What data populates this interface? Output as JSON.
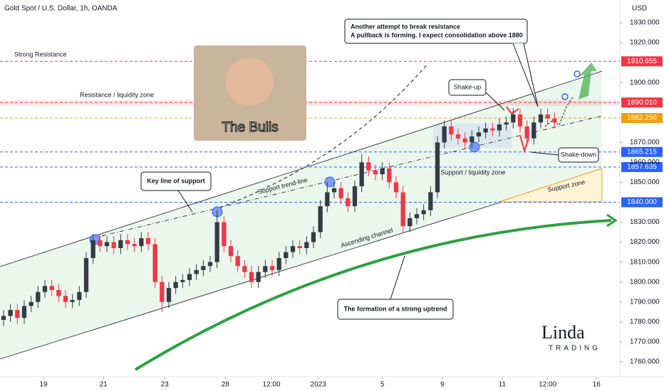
{
  "chart_data": {
    "type": "candlestick",
    "title": "Gold Spot / U.S. Dollar, 1h, OANDA",
    "y_axis_unit": "USD",
    "up_color": "#363a45",
    "down_color": "#f23645",
    "xlim": [
      0,
      90
    ],
    "xticks": [
      {
        "value": 5.8,
        "label": "19"
      },
      {
        "value": 14.5,
        "label": "21"
      },
      {
        "value": 23.4,
        "label": "23"
      },
      {
        "value": 32.2,
        "label": "28"
      },
      {
        "value": 38.9,
        "label": "12:00"
      },
      {
        "value": 45.7,
        "label": "2023"
      },
      {
        "value": 55,
        "label": "5"
      },
      {
        "value": 63.7,
        "label": "9"
      },
      {
        "value": 72.4,
        "label": "11"
      },
      {
        "value": 79,
        "label": "12:00"
      },
      {
        "value": 86.1,
        "label": "16"
      }
    ],
    "ylim": [
      1750.7,
      1941.4
    ],
    "yticks": [
      {
        "value": 1760,
        "label": "1760.000"
      },
      {
        "value": 1770,
        "label": "1770.000"
      },
      {
        "value": 1780,
        "label": "1780.000"
      },
      {
        "value": 1790,
        "label": "1790.000"
      },
      {
        "value": 1800,
        "label": "1800.000"
      },
      {
        "value": 1810,
        "label": "1810.000"
      },
      {
        "value": 1820,
        "label": "1820.000"
      },
      {
        "value": 1830,
        "label": "1830.000"
      },
      {
        "value": 1850,
        "label": "1850.000"
      },
      {
        "value": 1860,
        "label": "1860.000"
      },
      {
        "value": 1870,
        "label": "1870.000"
      },
      {
        "value": 1900,
        "label": "1900.000"
      },
      {
        "value": 1920,
        "label": "1920.000"
      },
      {
        "value": 1930,
        "label": "1930.000"
      }
    ],
    "levels": [
      {
        "value": 1910.655,
        "label": "1910.655",
        "color": "#f23645"
      },
      {
        "value": 1890.01,
        "label": "1890.010",
        "color": "#f23645"
      },
      {
        "value": 1882.25,
        "label": "1882.250",
        "color": "#f59d0b"
      },
      {
        "value": 1865.215,
        "label": "1865.215",
        "color": "#2962ff"
      },
      {
        "value": 1857.635,
        "label": "1857.635",
        "color": "#2962ff"
      },
      {
        "value": 1840,
        "label": "1840.000",
        "color": "#2962ff"
      }
    ],
    "open": [
      1781,
      1783,
      1786,
      1782,
      1788,
      1790,
      1795,
      1798,
      1796,
      1793,
      1790,
      1791,
      1795,
      1812,
      1821,
      1818,
      1820,
      1817,
      1821,
      1819,
      1818,
      1822,
      1819,
      1800,
      1790,
      1797,
      1800,
      1801,
      1804,
      1806,
      1808,
      1810,
      1830,
      1818,
      1813,
      1808,
      1805,
      1800,
      1805,
      1808,
      1806,
      1812,
      1815,
      1818,
      1817,
      1820,
      1825,
      1838,
      1845,
      1847,
      1842,
      1838,
      1848,
      1860,
      1856,
      1854,
      1857,
      1850,
      1845,
      1828,
      1832,
      1834,
      1836,
      1845,
      1870,
      1878,
      1874,
      1872,
      1870,
      1873,
      1875,
      1877,
      1876,
      1879,
      1880,
      1884,
      1878,
      1872,
      1880,
      1884,
      1882
    ],
    "high": [
      1786,
      1789,
      1789,
      1791,
      1793,
      1798,
      1801,
      1801,
      1799,
      1796,
      1794,
      1798,
      1815,
      1824,
      1824,
      1823,
      1823,
      1824,
      1824,
      1822,
      1825,
      1825,
      1822,
      1803,
      1800,
      1803,
      1804,
      1807,
      1809,
      1811,
      1813,
      1836,
      1833,
      1821,
      1816,
      1811,
      1808,
      1808,
      1811,
      1811,
      1815,
      1818,
      1821,
      1821,
      1823,
      1828,
      1841,
      1850,
      1850,
      1850,
      1845,
      1851,
      1864,
      1863,
      1859,
      1860,
      1860,
      1853,
      1848,
      1835,
      1837,
      1839,
      1848,
      1873,
      1881,
      1881,
      1877,
      1875,
      1876,
      1878,
      1880,
      1880,
      1882,
      1883,
      1887,
      1887,
      1881,
      1883,
      1887,
      1887,
      1885
    ],
    "low": [
      1778,
      1780,
      1779,
      1779,
      1785,
      1787,
      1792,
      1793,
      1790,
      1787,
      1787,
      1788,
      1792,
      1809,
      1815,
      1815,
      1814,
      1814,
      1816,
      1815,
      1815,
      1816,
      1797,
      1785,
      1787,
      1794,
      1797,
      1798,
      1801,
      1803,
      1805,
      1807,
      1815,
      1810,
      1805,
      1802,
      1797,
      1797,
      1802,
      1803,
      1803,
      1809,
      1812,
      1814,
      1814,
      1817,
      1822,
      1835,
      1842,
      1839,
      1835,
      1835,
      1845,
      1853,
      1851,
      1851,
      1847,
      1842,
      1825,
      1825,
      1829,
      1831,
      1833,
      1842,
      1867,
      1871,
      1869,
      1867,
      1867,
      1870,
      1872,
      1873,
      1873,
      1876,
      1877,
      1875,
      1869,
      1869,
      1877,
      1879,
      1877
    ],
    "close": [
      1783,
      1786,
      1782,
      1788,
      1790,
      1795,
      1798,
      1796,
      1793,
      1790,
      1791,
      1795,
      1812,
      1821,
      1818,
      1820,
      1817,
      1821,
      1819,
      1818,
      1822,
      1819,
      1800,
      1790,
      1797,
      1800,
      1801,
      1804,
      1806,
      1808,
      1810,
      1830,
      1818,
      1813,
      1808,
      1805,
      1800,
      1805,
      1808,
      1806,
      1812,
      1815,
      1818,
      1817,
      1820,
      1825,
      1838,
      1845,
      1847,
      1842,
      1838,
      1848,
      1860,
      1856,
      1854,
      1857,
      1850,
      1845,
      1828,
      1832,
      1834,
      1836,
      1845,
      1870,
      1878,
      1874,
      1872,
      1870,
      1873,
      1875,
      1877,
      1876,
      1879,
      1880,
      1884,
      1878,
      1872,
      1880,
      1884,
      1882,
      1880
    ],
    "annotations": {
      "strong_resistance": "Strong Resistance",
      "resistance_zone": "Resistance / liquidity zone",
      "bulls": "The Bulls",
      "callout_line1": "Another attempt to break resistance",
      "callout_line2": "A pullback is forming. I expect consolidation above 1880",
      "shake_up": "Shake-up",
      "shake_down": "Shake-down",
      "key_support": "Key line of support",
      "support_trend": "Support trend-line",
      "support_liquidity": "Support / liquidity zone",
      "support_zone": "Support zone",
      "channel": "Ascending channel",
      "uptrend": "The formation of a strong uptrend"
    },
    "logo": {
      "name": "Linda",
      "sub": "TRADING"
    }
  }
}
